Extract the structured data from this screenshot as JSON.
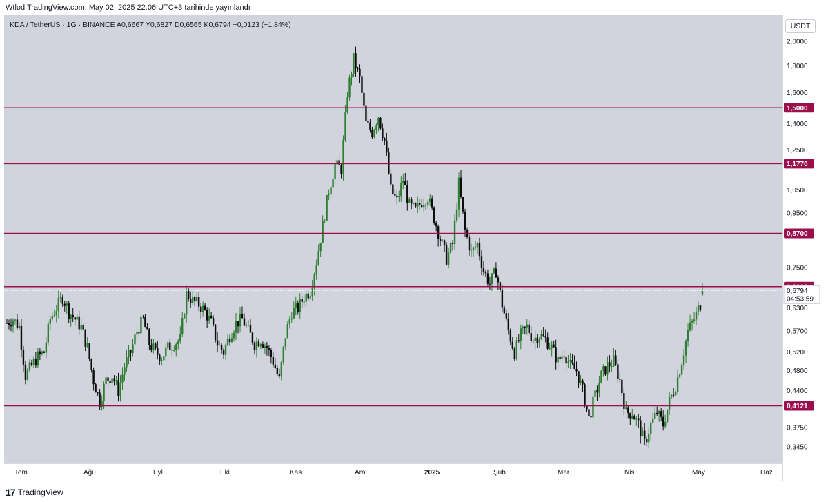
{
  "header": {
    "published": "Wtlod TradingView.com, May 02, 2025 22:06 UTC+3 tarihinde yayınlandı"
  },
  "legend": {
    "text": "KDA / TetherUS · 1G · BINANCE  A0,6667  Y0,6827  D0,6565  K0,6794  +0,0123 (+1,84%)"
  },
  "currency_badge": "USDT",
  "footer": {
    "brand": "TradingView"
  },
  "colors": {
    "background": "#d1d4dc",
    "level_line": "#9c0f4d",
    "candle_up": "#2e7d32",
    "candle_down": "#0c0c0c",
    "price_label_bg": "#ffffff"
  },
  "chart_data": {
    "type": "candlestick",
    "symbol": "KDA / TetherUS",
    "interval": "1G",
    "exchange": "BINANCE",
    "ohlc_last": {
      "open": 0.6667,
      "high": 0.6827,
      "low": 0.6565,
      "close": 0.6794,
      "change": 0.0123,
      "change_pct": 1.84
    },
    "y_scale": "log",
    "ylim": [
      0.32,
      2.1
    ],
    "y_ticks": [
      {
        "v": 2.0,
        "label": "2,0000"
      },
      {
        "v": 1.8,
        "label": "1,8000"
      },
      {
        "v": 1.6,
        "label": "1,6000"
      },
      {
        "v": 1.4,
        "label": "1,4000"
      },
      {
        "v": 1.25,
        "label": "1,2500"
      },
      {
        "v": 1.05,
        "label": "1,0500"
      },
      {
        "v": 0.95,
        "label": "0,9500"
      },
      {
        "v": 0.75,
        "label": "0,7500"
      },
      {
        "v": 0.63,
        "label": "0,6300"
      },
      {
        "v": 0.57,
        "label": "0,5700"
      },
      {
        "v": 0.52,
        "label": "0,5200"
      },
      {
        "v": 0.48,
        "label": "0,4800"
      },
      {
        "v": 0.44,
        "label": "0,4400"
      },
      {
        "v": 0.375,
        "label": "0,3750"
      },
      {
        "v": 0.345,
        "label": "0,3450"
      }
    ],
    "x_labels": [
      "Tem",
      "Ağu",
      "Eyl",
      "Eki",
      "Kas",
      "Ara",
      "2025",
      "Şub",
      "Mar",
      "Nis",
      "May",
      "Haz"
    ],
    "horizontal_levels": [
      {
        "v": 1.5,
        "label": "1,5000"
      },
      {
        "v": 1.177,
        "label": "1,1770"
      },
      {
        "v": 0.87,
        "label": "0,8700"
      },
      {
        "v": 0.6906,
        "label": "0,6906"
      },
      {
        "v": 0.4121,
        "label": "0,4121"
      }
    ],
    "current_price": {
      "v": 0.6794,
      "label": "0,6794",
      "countdown": "04:53:59"
    },
    "close_path": [
      [
        0,
        0.59
      ],
      [
        3,
        0.6
      ],
      [
        6,
        0.58
      ],
      [
        9,
        0.47
      ],
      [
        12,
        0.49
      ],
      [
        15,
        0.51
      ],
      [
        18,
        0.52
      ],
      [
        21,
        0.6
      ],
      [
        24,
        0.63
      ],
      [
        27,
        0.66
      ],
      [
        30,
        0.62
      ],
      [
        33,
        0.6
      ],
      [
        36,
        0.58
      ],
      [
        39,
        0.53
      ],
      [
        42,
        0.46
      ],
      [
        45,
        0.42
      ],
      [
        48,
        0.46
      ],
      [
        51,
        0.47
      ],
      [
        54,
        0.44
      ],
      [
        57,
        0.49
      ],
      [
        60,
        0.52
      ],
      [
        63,
        0.57
      ],
      [
        66,
        0.6
      ],
      [
        69,
        0.54
      ],
      [
        72,
        0.52
      ],
      [
        75,
        0.51
      ],
      [
        78,
        0.53
      ],
      [
        81,
        0.54
      ],
      [
        84,
        0.55
      ],
      [
        87,
        0.67
      ],
      [
        90,
        0.65
      ],
      [
        93,
        0.64
      ],
      [
        96,
        0.62
      ],
      [
        99,
        0.59
      ],
      [
        102,
        0.54
      ],
      [
        105,
        0.52
      ],
      [
        108,
        0.56
      ],
      [
        111,
        0.59
      ],
      [
        114,
        0.6
      ],
      [
        117,
        0.57
      ],
      [
        120,
        0.54
      ],
      [
        123,
        0.55
      ],
      [
        126,
        0.53
      ],
      [
        129,
        0.5
      ],
      [
        132,
        0.46
      ],
      [
        135,
        0.56
      ],
      [
        138,
        0.62
      ],
      [
        141,
        0.63
      ],
      [
        144,
        0.66
      ],
      [
        147,
        0.68
      ],
      [
        150,
        0.77
      ],
      [
        153,
        0.9
      ],
      [
        156,
        1.05
      ],
      [
        159,
        1.17
      ],
      [
        162,
        1.15
      ],
      [
        165,
        1.6
      ],
      [
        168,
        1.85
      ],
      [
        171,
        1.7
      ],
      [
        174,
        1.4
      ],
      [
        177,
        1.35
      ],
      [
        180,
        1.45
      ],
      [
        183,
        1.3
      ],
      [
        186,
        1.05
      ],
      [
        189,
        1.0
      ],
      [
        192,
        1.1
      ],
      [
        195,
        0.98
      ],
      [
        198,
        0.96
      ],
      [
        201,
        1.0
      ],
      [
        204,
        1.02
      ],
      [
        207,
        0.93
      ],
      [
        210,
        0.85
      ],
      [
        213,
        0.78
      ],
      [
        216,
        0.83
      ],
      [
        219,
        1.08
      ],
      [
        222,
        0.88
      ],
      [
        225,
        0.8
      ],
      [
        228,
        0.83
      ],
      [
        231,
        0.74
      ],
      [
        234,
        0.7
      ],
      [
        237,
        0.74
      ],
      [
        240,
        0.64
      ],
      [
        243,
        0.57
      ],
      [
        246,
        0.52
      ],
      [
        249,
        0.56
      ],
      [
        252,
        0.58
      ],
      [
        255,
        0.55
      ],
      [
        258,
        0.56
      ],
      [
        261,
        0.55
      ],
      [
        264,
        0.53
      ],
      [
        267,
        0.5
      ],
      [
        270,
        0.52
      ],
      [
        273,
        0.49
      ],
      [
        276,
        0.48
      ],
      [
        279,
        0.44
      ],
      [
        282,
        0.39
      ],
      [
        285,
        0.43
      ],
      [
        288,
        0.47
      ],
      [
        291,
        0.49
      ],
      [
        294,
        0.5
      ],
      [
        297,
        0.46
      ],
      [
        300,
        0.4
      ],
      [
        303,
        0.4
      ],
      [
        306,
        0.38
      ],
      [
        309,
        0.35
      ],
      [
        312,
        0.38
      ],
      [
        315,
        0.4
      ],
      [
        318,
        0.38
      ],
      [
        321,
        0.42
      ],
      [
        324,
        0.45
      ],
      [
        327,
        0.5
      ],
      [
        330,
        0.57
      ],
      [
        333,
        0.6
      ],
      [
        336,
        0.64
      ],
      [
        337,
        0.6794
      ]
    ]
  }
}
